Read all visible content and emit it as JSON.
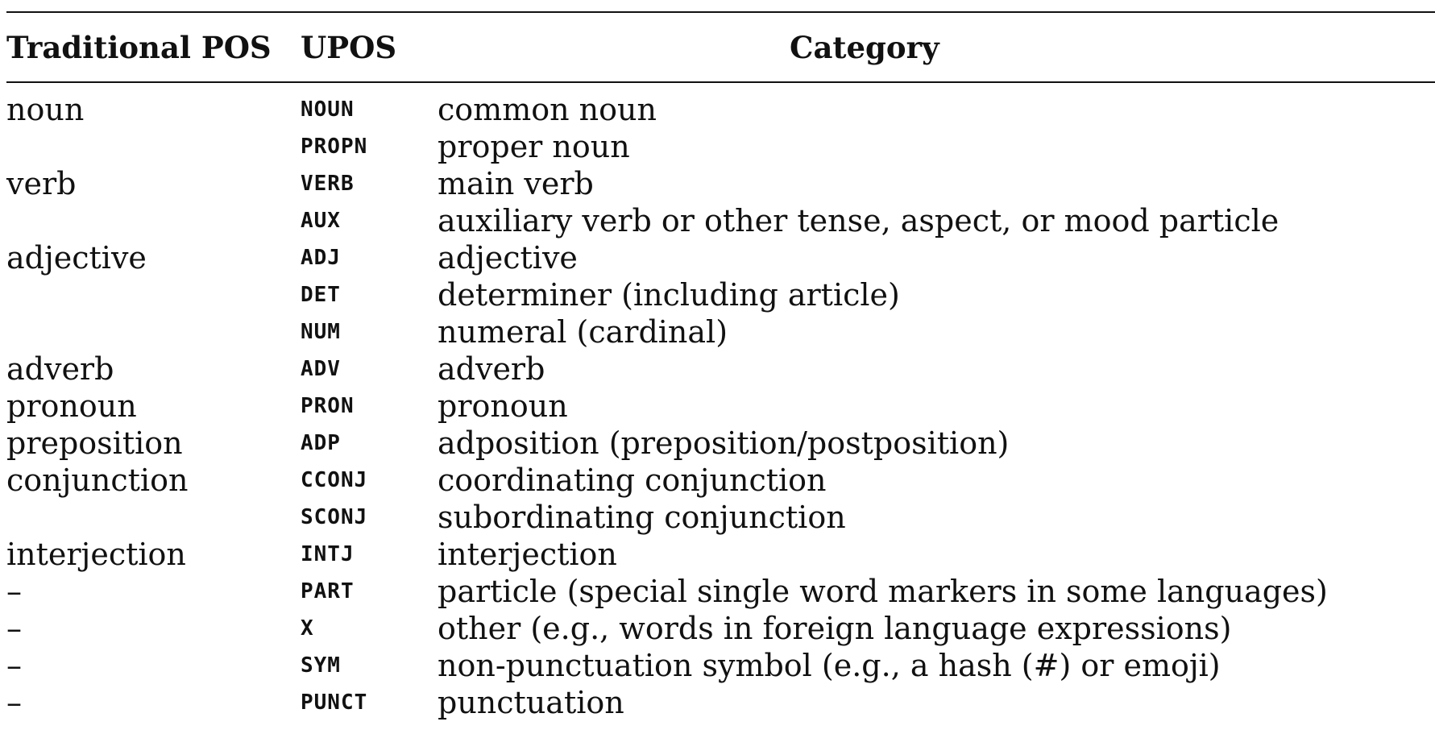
{
  "table": {
    "headers": {
      "traditional": "Traditional POS",
      "upos": "UPOS",
      "category": "Category"
    },
    "rows": [
      {
        "traditional": "noun",
        "upos": "NOUN",
        "category": "common noun"
      },
      {
        "traditional": "",
        "upos": "PROPN",
        "category": "proper noun"
      },
      {
        "traditional": "verb",
        "upos": "VERB",
        "category": "main verb"
      },
      {
        "traditional": "",
        "upos": "AUX",
        "category": "auxiliary verb or other tense, aspect, or mood particle"
      },
      {
        "traditional": "adjective",
        "upos": "ADJ",
        "category": "adjective"
      },
      {
        "traditional": "",
        "upos": "DET",
        "category": "determiner (including article)"
      },
      {
        "traditional": "",
        "upos": "NUM",
        "category": "numeral (cardinal)"
      },
      {
        "traditional": "adverb",
        "upos": "ADV",
        "category": "adverb"
      },
      {
        "traditional": "pronoun",
        "upos": "PRON",
        "category": "pronoun"
      },
      {
        "traditional": "preposition",
        "upos": "ADP",
        "category": "adposition (preposition/postposition)"
      },
      {
        "traditional": "conjunction",
        "upos": "CCONJ",
        "category": "coordinating conjunction"
      },
      {
        "traditional": "",
        "upos": "SCONJ",
        "category": "subordinating conjunction"
      },
      {
        "traditional": "interjection",
        "upos": "INTJ",
        "category": "interjection"
      },
      {
        "traditional": "–",
        "upos": "PART",
        "category": "particle (special single word markers in some languages)"
      },
      {
        "traditional": "–",
        "upos": "X",
        "category": "other (e.g., words in foreign language expressions)"
      },
      {
        "traditional": "–",
        "upos": "SYM",
        "category": "non-punctuation symbol (e.g., a hash (#) or emoji)"
      },
      {
        "traditional": "–",
        "upos": "PUNCT",
        "category": "punctuation"
      }
    ]
  }
}
